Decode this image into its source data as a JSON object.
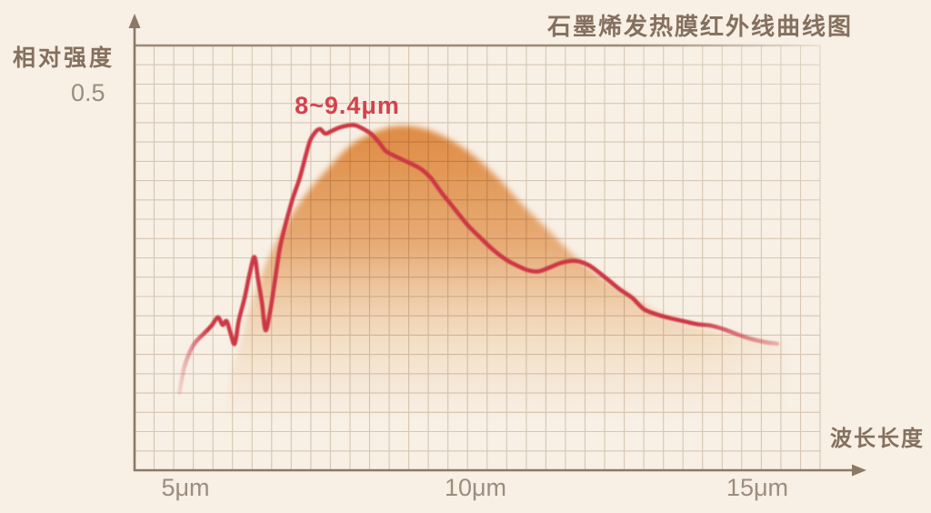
{
  "labels": {
    "title": "石墨烯发热膜红外线曲线图",
    "ylabel": "相对强度",
    "y_tick": "0.5",
    "annotation": "8~9.4μm",
    "xlabel": "波长长度"
  },
  "colors": {
    "background": "#f8f0e5",
    "curve_red": "#cc3745",
    "annotation_red": "#d2434e",
    "fill_orange_top": "#dd8539",
    "fill_orange_mid": "#e29958",
    "fill_orange_low": "#eecda5",
    "axis": "#8b7966",
    "grid": "#c7b6a3",
    "border": "#9b8a76",
    "text_brown": "#85705f",
    "text_muted": "#9c8d7d"
  },
  "chart_data": {
    "type": "area",
    "title": "石墨烯发热膜红外线曲线图",
    "xlabel": "波长长度",
    "ylabel": "相对强度",
    "x_unit": "μm",
    "x_tick_labels": [
      "5μm",
      "10μm",
      "15μm"
    ],
    "x_tick_values": [
      5,
      10,
      15
    ],
    "y_tick_labels": [
      "0.5"
    ],
    "y_tick_values": [
      0.5
    ],
    "xlim": [
      4.6,
      16.2
    ],
    "ylim": [
      0,
      0.56
    ],
    "grid": true,
    "legend": "none",
    "annotation": {
      "text": "8~9.4μm",
      "x_range_um": [
        8,
        9.4
      ]
    },
    "series": [
      {
        "name": "infrared-intensity-curve",
        "kind": "line",
        "color": "#cc3745",
        "points": [
          [
            4.89,
            0.103
          ],
          [
            4.97,
            0.135
          ],
          [
            5.05,
            0.153
          ],
          [
            5.16,
            0.169
          ],
          [
            5.31,
            0.181
          ],
          [
            5.45,
            0.192
          ],
          [
            5.56,
            0.203
          ],
          [
            5.64,
            0.193
          ],
          [
            5.71,
            0.198
          ],
          [
            5.78,
            0.181
          ],
          [
            5.85,
            0.168
          ],
          [
            5.92,
            0.199
          ],
          [
            6.02,
            0.229
          ],
          [
            6.11,
            0.262
          ],
          [
            6.19,
            0.283
          ],
          [
            6.25,
            0.254
          ],
          [
            6.32,
            0.222
          ],
          [
            6.38,
            0.186
          ],
          [
            6.46,
            0.211
          ],
          [
            6.55,
            0.256
          ],
          [
            6.63,
            0.296
          ],
          [
            6.74,
            0.331
          ],
          [
            6.85,
            0.361
          ],
          [
            6.97,
            0.388
          ],
          [
            7.07,
            0.417
          ],
          [
            7.15,
            0.438
          ],
          [
            7.24,
            0.449
          ],
          [
            7.32,
            0.453
          ],
          [
            7.41,
            0.447
          ],
          [
            7.51,
            0.45
          ],
          [
            7.65,
            0.455
          ],
          [
            7.81,
            0.458
          ],
          [
            7.93,
            0.458
          ],
          [
            8.07,
            0.453
          ],
          [
            8.21,
            0.446
          ],
          [
            8.34,
            0.435
          ],
          [
            8.45,
            0.424
          ],
          [
            8.59,
            0.418
          ],
          [
            8.75,
            0.412
          ],
          [
            8.89,
            0.407
          ],
          [
            9.06,
            0.4
          ],
          [
            9.23,
            0.388
          ],
          [
            9.42,
            0.368
          ],
          [
            9.64,
            0.347
          ],
          [
            9.86,
            0.326
          ],
          [
            10.08,
            0.309
          ],
          [
            10.3,
            0.293
          ],
          [
            10.52,
            0.28
          ],
          [
            10.71,
            0.272
          ],
          [
            10.89,
            0.266
          ],
          [
            11.08,
            0.264
          ],
          [
            11.27,
            0.269
          ],
          [
            11.46,
            0.275
          ],
          [
            11.65,
            0.278
          ],
          [
            11.8,
            0.277
          ],
          [
            11.96,
            0.272
          ],
          [
            12.12,
            0.263
          ],
          [
            12.3,
            0.252
          ],
          [
            12.49,
            0.24
          ],
          [
            12.7,
            0.229
          ],
          [
            12.9,
            0.214
          ],
          [
            13.12,
            0.207
          ],
          [
            13.35,
            0.202
          ],
          [
            13.59,
            0.198
          ],
          [
            13.82,
            0.194
          ],
          [
            14.06,
            0.192
          ],
          [
            14.29,
            0.187
          ],
          [
            14.53,
            0.18
          ],
          [
            14.77,
            0.174
          ],
          [
            15.0,
            0.17
          ],
          [
            15.2,
            0.168
          ]
        ]
      },
      {
        "name": "radiation-area-fill",
        "kind": "area",
        "color": "#dd8539",
        "points": [
          [
            5.72,
            0.105
          ],
          [
            5.91,
            0.159
          ],
          [
            6.11,
            0.214
          ],
          [
            6.38,
            0.272
          ],
          [
            6.69,
            0.32
          ],
          [
            7.05,
            0.364
          ],
          [
            7.45,
            0.4
          ],
          [
            7.84,
            0.431
          ],
          [
            8.23,
            0.448
          ],
          [
            8.65,
            0.457
          ],
          [
            9.09,
            0.454
          ],
          [
            9.51,
            0.441
          ],
          [
            9.95,
            0.419
          ],
          [
            10.39,
            0.388
          ],
          [
            10.83,
            0.351
          ],
          [
            11.27,
            0.318
          ],
          [
            11.71,
            0.284
          ],
          [
            12.18,
            0.256
          ],
          [
            12.68,
            0.232
          ],
          [
            13.18,
            0.209
          ],
          [
            13.71,
            0.193
          ],
          [
            14.34,
            0.182
          ],
          [
            14.97,
            0.174
          ],
          [
            15.36,
            0.169
          ]
        ]
      }
    ]
  }
}
